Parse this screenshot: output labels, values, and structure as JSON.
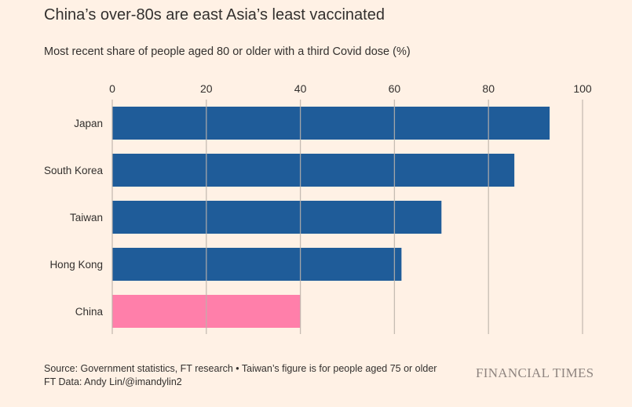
{
  "title": "China’s over-80s are east Asia’s least vaccinated",
  "subtitle": "Most recent share of people aged 80 or older with a third Covid dose (%)",
  "source_line1": "Source: Government statistics, FT research • Taiwan’s figure is for people aged 75 or older",
  "source_line2": "FT Data: Andy Lin/@imandylin2",
  "logo_text": "FINANCIAL TIMES",
  "colors": {
    "background": "#fff1e5",
    "bar_default": "#1f5c99",
    "bar_highlight": "#ff7faa",
    "grid": "#bcb3aa",
    "text": "#33302e"
  },
  "chart_data": {
    "type": "bar",
    "orientation": "horizontal",
    "categories": [
      "Japan",
      "South Korea",
      "Taiwan",
      "Hong Kong",
      "China"
    ],
    "values": [
      93,
      85.5,
      70,
      61.5,
      40
    ],
    "highlight": [
      "China"
    ],
    "xlim": [
      0,
      100
    ],
    "xticks": [
      0,
      20,
      40,
      60,
      80,
      100
    ],
    "xaxis_position": "top",
    "grid": true
  }
}
